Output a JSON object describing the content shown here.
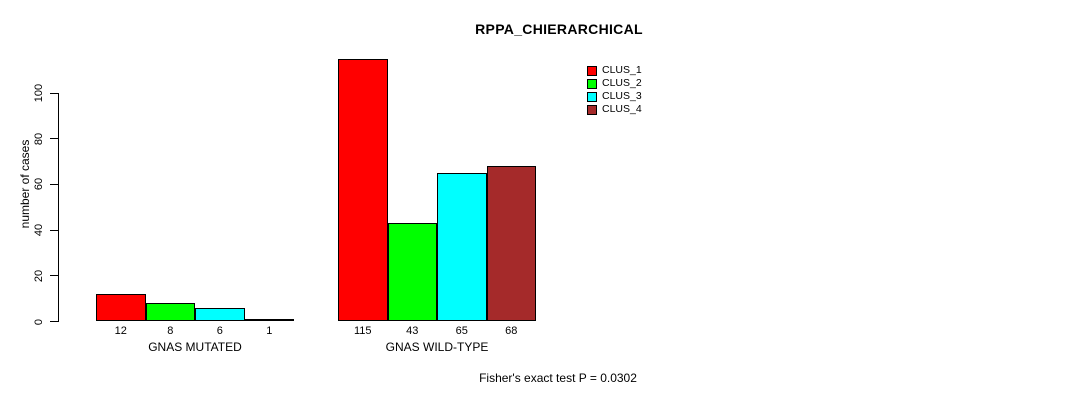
{
  "chart_data": {
    "type": "bar",
    "title": "RPPA_CHIERARCHICAL",
    "ylabel": "number of cases",
    "xlabel": "",
    "ylim": [
      0,
      115
    ],
    "yticks": [
      0,
      20,
      40,
      60,
      80,
      100
    ],
    "grid": false,
    "legend_position": "top-right-inside",
    "categories": [
      "GNAS MUTATED",
      "GNAS WILD-TYPE"
    ],
    "series": [
      {
        "name": "CLUS_1",
        "color": "#ff0000",
        "values": [
          12,
          115
        ]
      },
      {
        "name": "CLUS_2",
        "color": "#00ff00",
        "values": [
          8,
          43
        ]
      },
      {
        "name": "CLUS_3",
        "color": "#00ffff",
        "values": [
          6,
          65
        ]
      },
      {
        "name": "CLUS_4",
        "color": "#a52a2a",
        "values": [
          1,
          68
        ]
      }
    ],
    "bar_value_labels": [
      [
        "12",
        "8",
        "6",
        "1"
      ],
      [
        "115",
        "43",
        "65",
        "68"
      ]
    ],
    "annotation": "Fisher's exact test P = 0.0302",
    "colors": {
      "background": "#ffffff",
      "axis": "#000000",
      "text": "#000000"
    }
  }
}
